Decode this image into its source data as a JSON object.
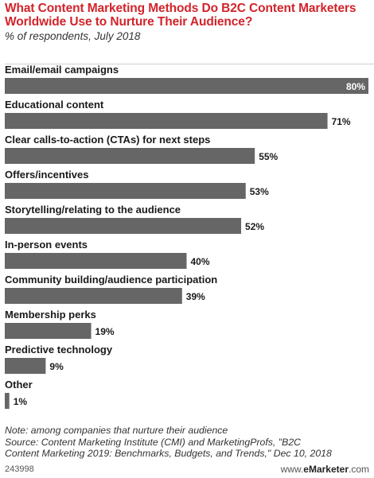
{
  "header": {
    "title": "What Content Marketing Methods Do B2C Content Marketers Worldwide Use to Nurture Their Audience?",
    "subtitle": "% of respondents, July 2018"
  },
  "chart_data": {
    "type": "bar",
    "orientation": "horizontal",
    "categories": [
      "Email/email campaigns",
      "Educational content",
      "Clear calls-to-action (CTAs) for next steps",
      "Offers/incentives",
      "Storytelling/relating to the audience",
      "In-person events",
      "Community building/audience participation",
      "Membership perks",
      "Predictive technology",
      "Other"
    ],
    "values": [
      80,
      71,
      55,
      53,
      52,
      40,
      39,
      19,
      9,
      1
    ],
    "value_labels": [
      "80%",
      "71%",
      "55%",
      "53%",
      "52%",
      "40%",
      "39%",
      "19%",
      "9%",
      "1%"
    ],
    "bar_color": "#666666",
    "xlim": [
      0,
      80
    ],
    "grid": false,
    "legend": "none"
  },
  "footer": {
    "note": "Note: among companies that nurture their audience",
    "source_lines": [
      "Source: Content Marketing Institute (CMI) and MarketingProfs, \"B2C",
      "Content Marketing 2019: Benchmarks, Budgets, and Trends,\" Dec 10, 2018"
    ],
    "chart_id": "243998",
    "brand_prefix": "www.",
    "brand_name": "eMarketer",
    "brand_suffix": ".com"
  },
  "colors": {
    "title": "#d2232a",
    "bar": "#666666",
    "text": "#222222"
  }
}
